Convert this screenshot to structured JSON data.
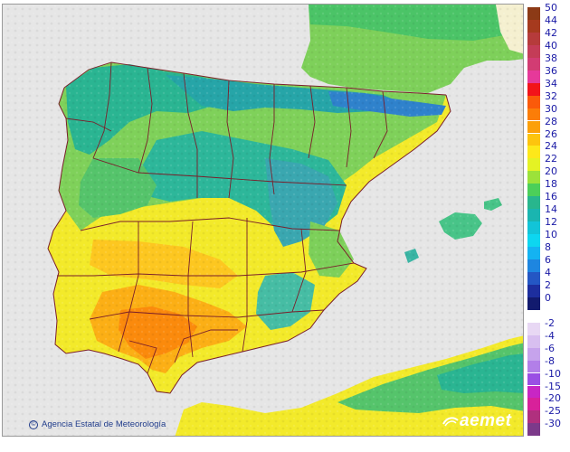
{
  "map": {
    "sea_color": "#e6e6e6",
    "border_color": "#7a1f2b",
    "credit_text": "Agencia Estatal de Meteorología",
    "brand_text": "aemet"
  },
  "legend": {
    "entries": [
      {
        "label": "50",
        "color": "#8c3a16"
      },
      {
        "label": "44",
        "color": "#a63a1e"
      },
      {
        "label": "42",
        "color": "#b63b3b"
      },
      {
        "label": "40",
        "color": "#c43c57"
      },
      {
        "label": "38",
        "color": "#d23c73"
      },
      {
        "label": "36",
        "color": "#e6399a"
      },
      {
        "label": "34",
        "color": "#f2141a"
      },
      {
        "label": "32",
        "color": "#fa5a0a"
      },
      {
        "label": "30",
        "color": "#fb7d08"
      },
      {
        "label": "28",
        "color": "#fca00a"
      },
      {
        "label": "26",
        "color": "#fdc40e"
      },
      {
        "label": "24",
        "color": "#fde81a"
      },
      {
        "label": "22",
        "color": "#e4f224"
      },
      {
        "label": "20",
        "color": "#9ce23a"
      },
      {
        "label": "18",
        "color": "#4ccf59"
      },
      {
        "label": "16",
        "color": "#28b68d"
      },
      {
        "label": "14",
        "color": "#1ab5b0"
      },
      {
        "label": "12",
        "color": "#12c4d8"
      },
      {
        "label": "10",
        "color": "#0dd6f0"
      },
      {
        "label": "8",
        "color": "#14b3f2"
      },
      {
        "label": "6",
        "color": "#1e86e0"
      },
      {
        "label": "4",
        "color": "#2457c4"
      },
      {
        "label": "2",
        "color": "#1d2e9e"
      },
      {
        "label": "0",
        "color": "#121a6e"
      },
      {
        "label": "",
        "color": "#ffffff"
      },
      {
        "label": "-2",
        "color": "#e8d8f4"
      },
      {
        "label": "-4",
        "color": "#d8bff0"
      },
      {
        "label": "-6",
        "color": "#c6a3ec"
      },
      {
        "label": "-8",
        "color": "#b27fe8"
      },
      {
        "label": "-10",
        "color": "#9a4fe4"
      },
      {
        "label": "-15",
        "color": "#c826c4"
      },
      {
        "label": "-20",
        "color": "#d8219a"
      },
      {
        "label": "-25",
        "color": "#b0307e"
      },
      {
        "label": "-30",
        "color": "#7c3a8a"
      }
    ]
  }
}
